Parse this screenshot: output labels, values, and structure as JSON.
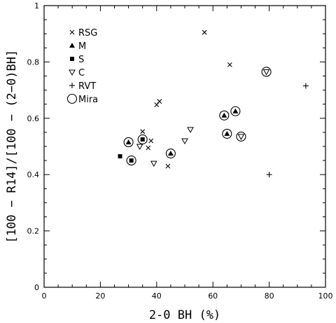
{
  "chart_data": {
    "type": "scatter",
    "xlabel": "2-0 BH (%)",
    "ylabel": "[100 − R14]/[100 − (2−0)BH]",
    "xlim": [
      0,
      100
    ],
    "ylim": [
      0,
      1
    ],
    "x_ticks": [
      "0",
      "20",
      "40",
      "60",
      "80",
      "100"
    ],
    "y_ticks": [
      "0",
      "0.2",
      "0.4",
      "0.6",
      "0.8",
      "1"
    ],
    "grid": false,
    "legend_position": "top-left",
    "series": [
      {
        "name": "RSG",
        "marker": "x",
        "points": [
          [
            57,
            0.905
          ],
          [
            66,
            0.79
          ],
          [
            41,
            0.66
          ],
          [
            40,
            0.648
          ],
          [
            35,
            0.553
          ],
          [
            38,
            0.52
          ],
          [
            37,
            0.495
          ],
          [
            44,
            0.43
          ]
        ]
      },
      {
        "name": "M",
        "marker": "filled-triangle",
        "points": []
      },
      {
        "name": "S",
        "marker": "filled-square",
        "points": [
          [
            27,
            0.465
          ]
        ]
      },
      {
        "name": "C",
        "marker": "open-triangle-down",
        "points": [
          [
            52,
            0.56
          ],
          [
            50,
            0.52
          ],
          [
            34,
            0.5
          ],
          [
            39,
            0.44
          ]
        ]
      },
      {
        "name": "RVT",
        "marker": "plus",
        "points": [
          [
            93,
            0.715
          ],
          [
            80,
            0.4
          ]
        ]
      },
      {
        "name": "Mira",
        "marker": "circle",
        "points": []
      }
    ],
    "circled_points": [
      {
        "inner": "filled-triangle",
        "x": 30,
        "y": 0.515
      },
      {
        "inner": "filled-square",
        "x": 35,
        "y": 0.525
      },
      {
        "inner": "filled-square",
        "x": 31,
        "y": 0.45
      },
      {
        "inner": "filled-triangle",
        "x": 45,
        "y": 0.475
      },
      {
        "inner": "filled-triangle",
        "x": 64,
        "y": 0.61
      },
      {
        "inner": "filled-triangle",
        "x": 68,
        "y": 0.625
      },
      {
        "inner": "filled-triangle",
        "x": 65,
        "y": 0.545
      },
      {
        "inner": "open-triangle-down",
        "x": 70,
        "y": 0.535
      },
      {
        "inner": "open-triangle-down",
        "x": 79,
        "y": 0.765
      }
    ]
  }
}
